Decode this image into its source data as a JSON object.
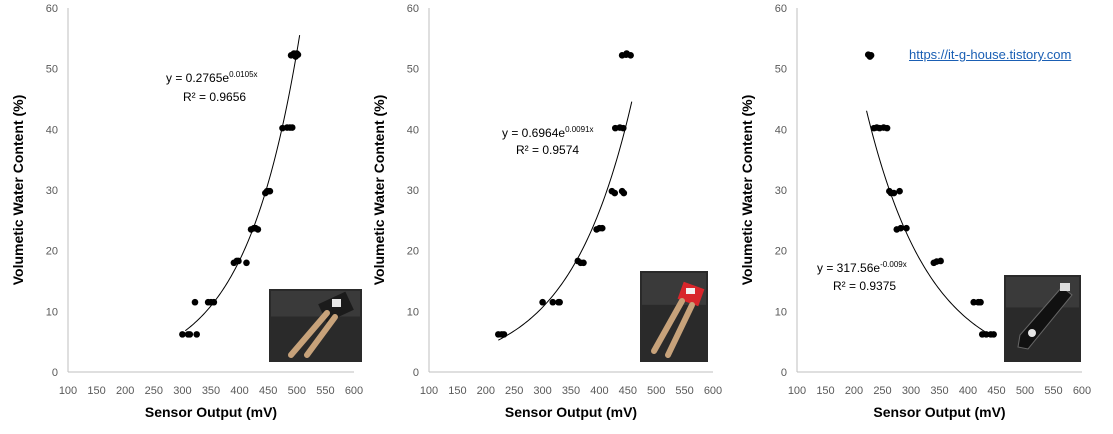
{
  "link": {
    "text": "https://it-g-house.tistory.com"
  },
  "chart_data": [
    {
      "type": "scatter",
      "xlabel": "Sensor Output (mV)",
      "ylabel": "Volumetic Water Content (%)",
      "xlim": [
        100,
        600
      ],
      "ylim": [
        0,
        60
      ],
      "xticks": [
        100,
        150,
        200,
        250,
        300,
        350,
        400,
        450,
        500,
        550,
        600
      ],
      "yticks": [
        0,
        10,
        20,
        30,
        40,
        50,
        60
      ],
      "grid": false,
      "trendline": {
        "type": "exponential",
        "a": 0.2765,
        "b": 0.0105,
        "x_range": [
          305,
          505
        ]
      },
      "equation": {
        "base": "y = 0.2765e",
        "exponent": "0.0105x",
        "r2": "R² = 0.9656"
      },
      "sensor_photo": "soil-moisture-sensor-black-board",
      "points": [
        [
          300,
          6.2
        ],
        [
          310,
          6.2
        ],
        [
          313,
          6.2
        ],
        [
          325,
          6.2
        ],
        [
          322,
          11.5
        ],
        [
          345,
          11.5
        ],
        [
          350,
          11.5
        ],
        [
          355,
          11.5
        ],
        [
          390,
          18.0
        ],
        [
          395,
          18.3
        ],
        [
          398,
          18.3
        ],
        [
          412,
          18.0
        ],
        [
          420,
          23.5
        ],
        [
          425,
          23.7
        ],
        [
          428,
          23.7
        ],
        [
          432,
          23.5
        ],
        [
          445,
          29.5
        ],
        [
          448,
          29.8
        ],
        [
          450,
          29.8
        ],
        [
          453,
          29.8
        ],
        [
          475,
          40.2
        ],
        [
          483,
          40.3
        ],
        [
          488,
          40.3
        ],
        [
          492,
          40.3
        ],
        [
          490,
          52.2
        ],
        [
          495,
          52.5
        ],
        [
          498,
          52.0
        ],
        [
          502,
          52.3
        ],
        [
          500,
          52.5
        ]
      ]
    },
    {
      "type": "scatter",
      "xlabel": "Sensor Output (mV)",
      "ylabel": "Volumetic Water Content (%)",
      "xlim": [
        100,
        600
      ],
      "ylim": [
        0,
        60
      ],
      "xticks": [
        100,
        150,
        200,
        250,
        300,
        350,
        400,
        450,
        500,
        550,
        600
      ],
      "yticks": [
        0,
        10,
        20,
        30,
        40,
        50,
        60
      ],
      "grid": false,
      "trendline": {
        "type": "exponential",
        "a": 0.6964,
        "b": 0.0091,
        "x_range": [
          222,
          457
        ]
      },
      "equation": {
        "base": "y = 0.6964e",
        "exponent": "0.0091x",
        "r2": "R² = 0.9574"
      },
      "sensor_photo": "soil-moisture-sensor-red-board",
      "points": [
        [
          222,
          6.2
        ],
        [
          228,
          6.2
        ],
        [
          232,
          6.2
        ],
        [
          300,
          11.5
        ],
        [
          318,
          11.5
        ],
        [
          328,
          11.5
        ],
        [
          330,
          11.5
        ],
        [
          362,
          18.3
        ],
        [
          367,
          18.0
        ],
        [
          372,
          18.0
        ],
        [
          395,
          23.5
        ],
        [
          400,
          23.7
        ],
        [
          405,
          23.7
        ],
        [
          422,
          29.8
        ],
        [
          427,
          29.5
        ],
        [
          440,
          29.8
        ],
        [
          443,
          29.5
        ],
        [
          428,
          40.2
        ],
        [
          436,
          40.3
        ],
        [
          442,
          40.2
        ],
        [
          440,
          52.2
        ],
        [
          447,
          52.3
        ],
        [
          455,
          52.2
        ],
        [
          448,
          52.5
        ]
      ]
    },
    {
      "type": "scatter",
      "xlabel": "Sensor Output (mV)",
      "ylabel": "Volumetic Water Content (%)",
      "xlim": [
        100,
        600
      ],
      "ylim": [
        0,
        60
      ],
      "xticks": [
        100,
        150,
        200,
        250,
        300,
        350,
        400,
        450,
        500,
        550,
        600
      ],
      "yticks": [
        0,
        10,
        20,
        30,
        40,
        50,
        60
      ],
      "grid": false,
      "trendline": {
        "type": "exponential",
        "a": 317.56,
        "b": -0.009,
        "x_range": [
          222,
          445
        ]
      },
      "equation": {
        "base": "y = 317.56e",
        "exponent": "-0.009x",
        "r2": "R² = 0.9375"
      },
      "sensor_photo": "soil-moisture-sensor-black-probe",
      "points": [
        [
          225,
          52.3
        ],
        [
          228,
          52.0
        ],
        [
          230,
          52.2
        ],
        [
          235,
          40.2
        ],
        [
          240,
          40.3
        ],
        [
          245,
          40.2
        ],
        [
          252,
          40.3
        ],
        [
          258,
          40.2
        ],
        [
          262,
          29.8
        ],
        [
          265,
          29.5
        ],
        [
          270,
          29.5
        ],
        [
          280,
          29.8
        ],
        [
          275,
          23.5
        ],
        [
          282,
          23.7
        ],
        [
          292,
          23.7
        ],
        [
          340,
          18.0
        ],
        [
          345,
          18.2
        ],
        [
          352,
          18.3
        ],
        [
          410,
          11.5
        ],
        [
          418,
          11.5
        ],
        [
          422,
          11.5
        ],
        [
          425,
          6.2
        ],
        [
          432,
          6.2
        ],
        [
          440,
          6.2
        ],
        [
          445,
          6.2
        ]
      ]
    }
  ]
}
